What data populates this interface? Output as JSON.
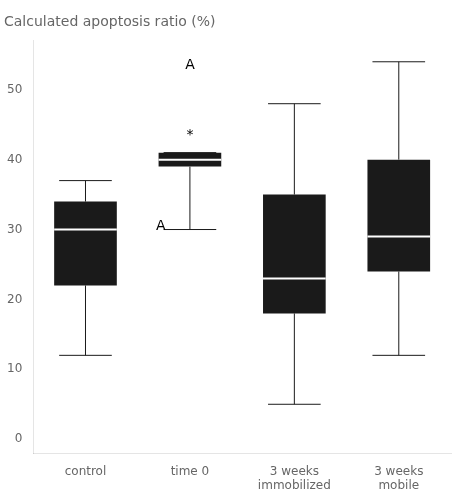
{
  "chart_data": {
    "type": "box",
    "title": "Calculated apoptosis ratio (%)",
    "categories": [
      "control",
      "time 0",
      "3 weeks\nimmobilized",
      "3 weeks\nmobile"
    ],
    "boxes": [
      {
        "whisker_low": 12,
        "q1": 22,
        "median": 30,
        "q3": 34,
        "whisker_high": 37
      },
      {
        "whisker_low": 30,
        "q1": 39,
        "median": 40,
        "q3": 41,
        "whisker_high": 41
      },
      {
        "whisker_low": 5,
        "q1": 18,
        "median": 23,
        "q3": 35,
        "whisker_high": 48
      },
      {
        "whisker_low": 12,
        "q1": 24,
        "median": 29,
        "q3": 40,
        "whisker_high": 54
      }
    ],
    "color": "#1a1a1a",
    "annotations": [
      {
        "text": "A",
        "x": 1.0,
        "y": 52.5
      },
      {
        "text": "*",
        "x": 1.0,
        "y": 42.5
      },
      {
        "text": "A",
        "x": 0.72,
        "y": 29.5
      }
    ],
    "ylim": [
      -2,
      57
    ],
    "yticks": [
      0,
      10,
      20,
      30,
      40,
      50
    ],
    "grid": false
  }
}
